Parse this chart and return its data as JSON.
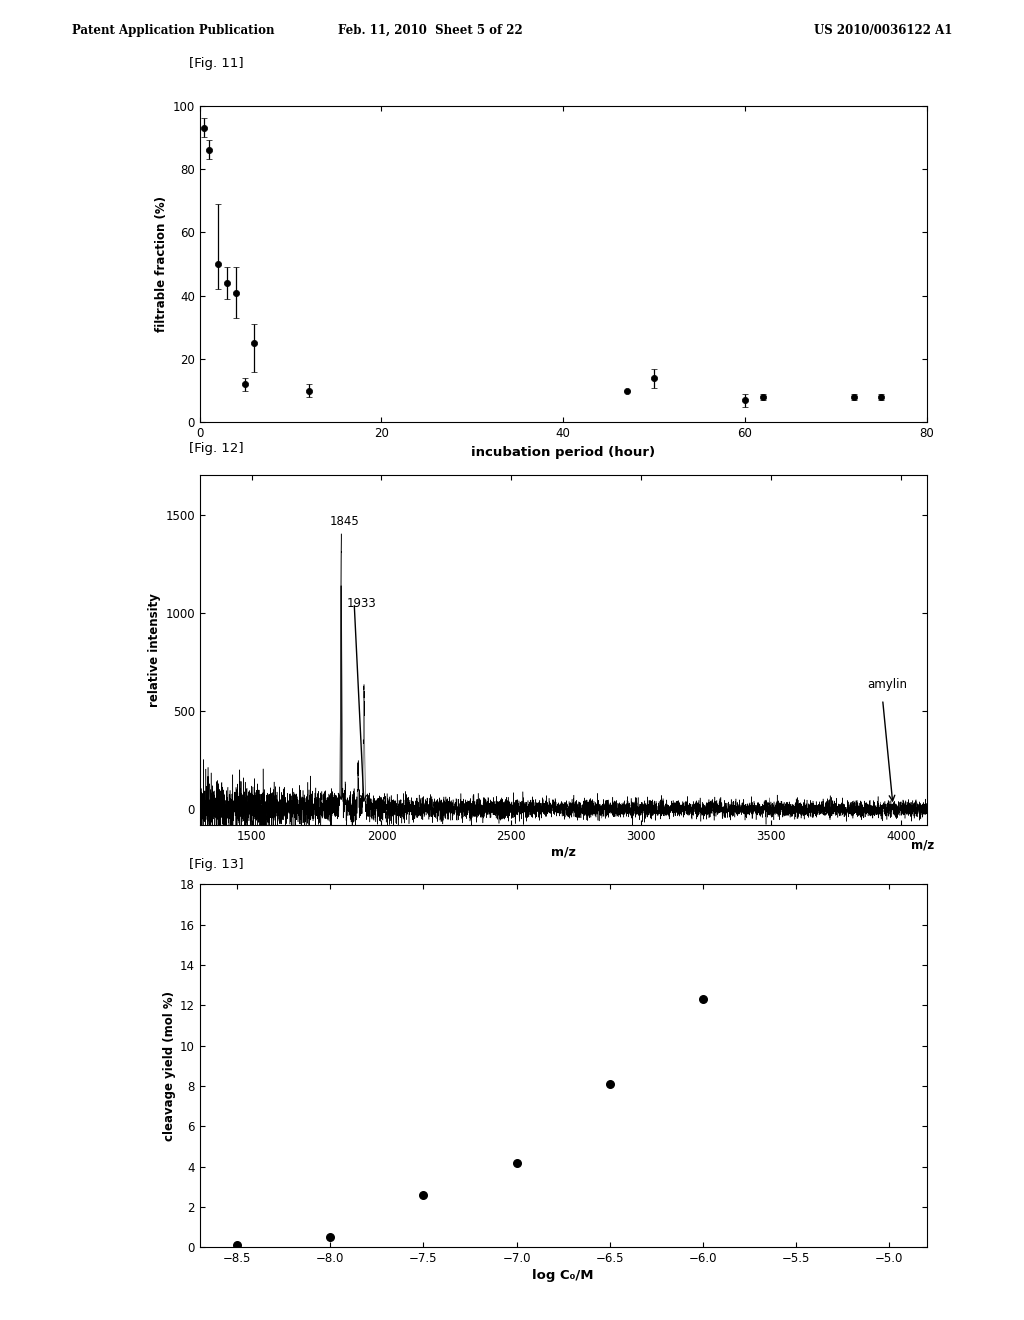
{
  "fig11": {
    "label": "[Fig. 11]",
    "xlabel": "incubation period (hour)",
    "ylabel": "filtrable fraction (%)",
    "xlim": [
      0,
      80
    ],
    "ylim": [
      0,
      100
    ],
    "xticks": [
      0,
      20,
      40,
      60,
      80
    ],
    "yticks": [
      0,
      20,
      40,
      60,
      80,
      100
    ],
    "data_x": [
      0.5,
      1.0,
      2.0,
      3.0,
      4.0,
      5.0,
      6.0,
      12.0,
      47.0,
      50.0,
      60.0,
      62.0,
      72.0,
      75.0
    ],
    "data_y": [
      93,
      86,
      50,
      44,
      41,
      12,
      25,
      10,
      10,
      14,
      7,
      8,
      8,
      8
    ],
    "data_yerr_low": [
      3,
      3,
      8,
      5,
      8,
      2,
      9,
      2,
      0,
      3,
      2,
      1,
      1,
      1
    ],
    "data_yerr_high": [
      3,
      3,
      19,
      5,
      8,
      2,
      6,
      2,
      0,
      3,
      2,
      1,
      1,
      1
    ]
  },
  "fig12": {
    "label": "[Fig. 12]",
    "xlabel": "m/z",
    "ylabel": "relative intensity",
    "xlim": [
      1300,
      4100
    ],
    "ylim": [
      -80,
      1700
    ],
    "xticks": [
      1500,
      2000,
      2500,
      3000,
      3500,
      4000
    ],
    "yticks": [
      0,
      500,
      1000,
      1500
    ],
    "peak1_x": 1845,
    "peak1_height": 1380,
    "peak2_x": 1933,
    "peak2_height": 600,
    "amylin_x": 3970,
    "arrow1_label": "1845",
    "arrow2_label": "1933",
    "amylin_label": "amylin"
  },
  "fig13": {
    "label": "[Fig. 13]",
    "xlabel": "log C₀/M",
    "ylabel": "cleavage yield (mol %)",
    "xlim": [
      -8.7,
      -4.8
    ],
    "ylim": [
      0,
      18
    ],
    "xticks": [
      -8.5,
      -8.0,
      -7.5,
      -7.0,
      -6.5,
      -6.0,
      -5.5,
      -5.0
    ],
    "yticks": [
      0,
      2,
      4,
      6,
      8,
      10,
      12,
      14,
      16,
      18
    ],
    "data_x": [
      -8.5,
      -8.0,
      -7.5,
      -7.0,
      -6.5,
      -6.0
    ],
    "data_y": [
      0.1,
      0.5,
      2.6,
      4.2,
      8.1,
      12.3
    ]
  },
  "header_left": "Patent Application Publication",
  "header_mid": "Feb. 11, 2010  Sheet 5 of 22",
  "header_right": "US 2010/0036122 A1",
  "bg_color": "#ffffff",
  "text_color": "#000000"
}
